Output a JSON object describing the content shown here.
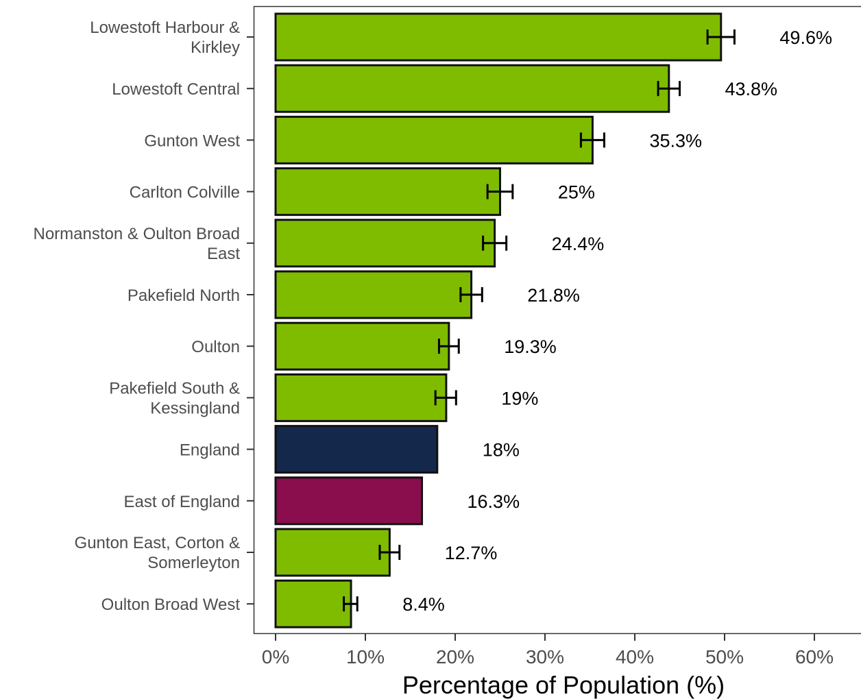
{
  "chart_data": {
    "type": "bar",
    "orientation": "horizontal",
    "xlabel": "Percentage of Population (%)",
    "ylabel": "",
    "xlim": [
      0,
      60
    ],
    "x_ticks": [
      0,
      10,
      20,
      30,
      40,
      50,
      60
    ],
    "x_tick_labels": [
      "0%",
      "10%",
      "20%",
      "30%",
      "40%",
      "50%",
      "60%"
    ],
    "grid": false,
    "legend": "none",
    "categories": [
      [
        "Lowestoft Harbour &",
        "Kirkley"
      ],
      [
        "Lowestoft Central"
      ],
      [
        "Gunton West"
      ],
      [
        "Carlton Colville"
      ],
      [
        "Normanston & Oulton Broad",
        "East"
      ],
      [
        "Pakefield North"
      ],
      [
        "Oulton"
      ],
      [
        "Pakefield South &",
        "Kessingland"
      ],
      [
        "England"
      ],
      [
        "East of England"
      ],
      [
        "Gunton East, Corton &",
        "Somerleyton"
      ],
      [
        "Oulton Broad West"
      ]
    ],
    "values": [
      49.6,
      43.8,
      35.3,
      25,
      24.4,
      21.8,
      19.3,
      19,
      18,
      16.3,
      12.7,
      8.4
    ],
    "value_labels": [
      "49.6%",
      "43.8%",
      "35.3%",
      "25%",
      "24.4%",
      "21.8%",
      "19.3%",
      "19%",
      "18%",
      "16.3%",
      "12.7%",
      "8.4%"
    ],
    "error_low": [
      48.1,
      42.6,
      34.0,
      23.6,
      23.1,
      20.6,
      18.2,
      17.8,
      null,
      null,
      11.6,
      7.6
    ],
    "error_high": [
      51.1,
      45.0,
      36.6,
      26.4,
      25.7,
      23.0,
      20.4,
      20.1,
      null,
      null,
      13.8,
      9.1
    ],
    "bar_colors": [
      "#7fbc00",
      "#7fbc00",
      "#7fbc00",
      "#7fbc00",
      "#7fbc00",
      "#7fbc00",
      "#7fbc00",
      "#7fbc00",
      "#14284b",
      "#8a0d4e",
      "#7fbc00",
      "#7fbc00"
    ]
  }
}
